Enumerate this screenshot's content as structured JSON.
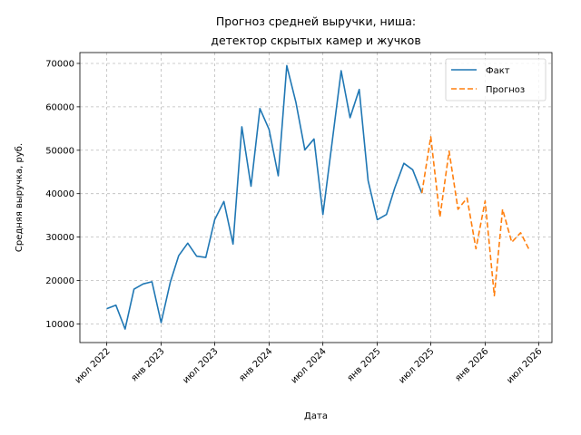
{
  "chart_data": {
    "type": "line",
    "title_lines": [
      "Прогноз средней выручки, ниша:",
      "детектор скрытых камер и жучков"
    ],
    "xlabel": "Дата",
    "ylabel": "Средняя выручка, руб.",
    "xlim": [
      "2022-04-01",
      "2026-08-15"
    ],
    "ylim": [
      5700,
      72500
    ],
    "yticks": [
      10000,
      20000,
      30000,
      40000,
      50000,
      60000,
      70000
    ],
    "xticks": [
      {
        "date": "2022-07-01",
        "label": "июл 2022"
      },
      {
        "date": "2023-01-01",
        "label": "янв 2023"
      },
      {
        "date": "2023-07-01",
        "label": "июл 2023"
      },
      {
        "date": "2024-01-01",
        "label": "янв 2024"
      },
      {
        "date": "2024-07-01",
        "label": "июл 2024"
      },
      {
        "date": "2025-01-01",
        "label": "янв 2025"
      },
      {
        "date": "2025-07-01",
        "label": "июл 2025"
      },
      {
        "date": "2026-01-01",
        "label": "янв 2026"
      },
      {
        "date": "2026-07-01",
        "label": "июл 2026"
      }
    ],
    "grid": true,
    "legend_position": "top-right",
    "series": [
      {
        "name": "Факт",
        "color": "#1f77b4",
        "style": "solid",
        "x": [
          "2022-07-01",
          "2022-08-01",
          "2022-09-01",
          "2022-10-01",
          "2022-11-01",
          "2022-12-01",
          "2023-01-01",
          "2023-02-01",
          "2023-03-01",
          "2023-04-01",
          "2023-05-01",
          "2023-06-01",
          "2023-07-01",
          "2023-08-01",
          "2023-09-01",
          "2023-10-01",
          "2023-11-01",
          "2023-12-01",
          "2024-01-01",
          "2024-02-01",
          "2024-03-01",
          "2024-04-01",
          "2024-05-01",
          "2024-06-01",
          "2024-07-01",
          "2024-08-01",
          "2024-09-01",
          "2024-10-01",
          "2024-11-01",
          "2024-12-01",
          "2025-01-01",
          "2025-02-01",
          "2025-03-01",
          "2025-04-01",
          "2025-05-01",
          "2025-06-01"
        ],
        "values": [
          13500,
          14300,
          8800,
          18000,
          19200,
          19700,
          10300,
          19600,
          25700,
          28600,
          25600,
          25300,
          34000,
          38200,
          28400,
          55400,
          41700,
          59600,
          54800,
          44100,
          69500,
          61000,
          50100,
          52600,
          35200,
          51600,
          68300,
          57500,
          64000,
          43000,
          34000,
          35200,
          41300,
          47000,
          45500,
          40100
        ]
      },
      {
        "name": "Прогноз",
        "color": "#ff7f0e",
        "style": "dashed",
        "x": [
          "2025-06-01",
          "2025-07-01",
          "2025-08-01",
          "2025-09-01",
          "2025-10-01",
          "2025-11-01",
          "2025-12-01",
          "2026-01-01",
          "2026-02-01",
          "2026-03-01",
          "2026-04-01",
          "2026-05-01",
          "2026-06-01"
        ],
        "values": [
          40100,
          53100,
          34600,
          49800,
          36400,
          39000,
          27300,
          38300,
          16500,
          36400,
          28800,
          31000,
          26800
        ]
      }
    ]
  }
}
